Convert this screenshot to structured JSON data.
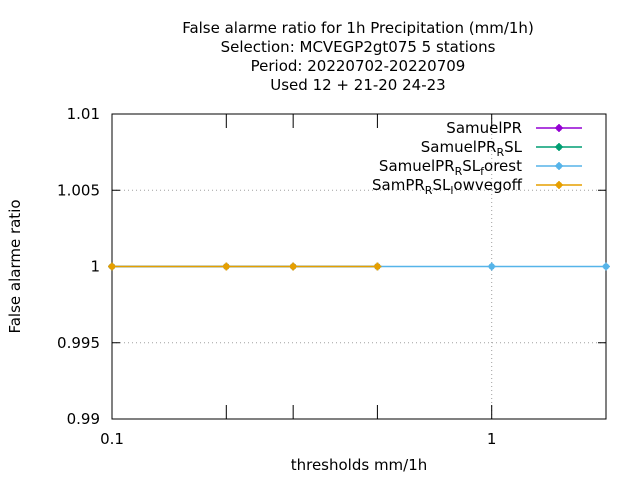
{
  "chart_data": {
    "type": "line",
    "title_lines": [
      "False alarme ratio  for 1h Precipitation (mm/1h)",
      "Selection: MCVEGP2gt075      5 stations",
      "Period: 20220702-20220709",
      "Used  12 + 21-20 24-23"
    ],
    "xlabel": "thresholds mm/1h",
    "ylabel": "False alarme ratio",
    "x_scale": "log",
    "xlim": [
      0.1,
      2
    ],
    "ylim": [
      0.99,
      1.01
    ],
    "x_ticks": [
      {
        "value": 0.1,
        "label": "0.1"
      },
      {
        "value": 1,
        "label": "1"
      }
    ],
    "x_minor_ticks": [
      0.2,
      0.3,
      0.5,
      2
    ],
    "y_ticks": [
      {
        "value": 0.99,
        "label": "0.99"
      },
      {
        "value": 0.995,
        "label": "0.995"
      },
      {
        "value": 1,
        "label": "1"
      },
      {
        "value": 1.005,
        "label": "1.005"
      },
      {
        "value": 1.01,
        "label": "1.01"
      }
    ],
    "grid": true,
    "legend_position": "top-right",
    "series": [
      {
        "name": "SamuelPR",
        "legend": {
          "main": "SamuelPR",
          "sub": "",
          "after": ""
        },
        "color": "#9400d3",
        "x": [
          0.1,
          0.2,
          0.3,
          0.5
        ],
        "y": [
          1,
          1,
          1,
          1
        ]
      },
      {
        "name": "SamuelPR_RSL",
        "legend": {
          "main": "SamuelPR",
          "sub": "R",
          "after": "SL"
        },
        "color": "#009e73",
        "x": [
          0.1,
          0.2,
          0.3,
          0.5
        ],
        "y": [
          1,
          1,
          1,
          1
        ]
      },
      {
        "name": "SamuelPR_RSL_forest",
        "legend": {
          "main": "SamuelPR",
          "sub": "R",
          "after": "SL",
          "sub2": "f",
          "after2": "orest"
        },
        "color": "#56b4e9",
        "x": [
          0.1,
          0.2,
          0.3,
          0.5,
          1,
          2
        ],
        "y": [
          1,
          1,
          1,
          1,
          1,
          1
        ]
      },
      {
        "name": "SamPR_RSL_lowvegoff",
        "legend": {
          "main": "SamPR",
          "sub": "R",
          "after": "SL",
          "sub2": "l",
          "after2": "owvegoff"
        },
        "color": "#e69f00",
        "x": [
          0.1,
          0.2,
          0.3,
          0.5
        ],
        "y": [
          1,
          1,
          1,
          1
        ]
      }
    ]
  }
}
